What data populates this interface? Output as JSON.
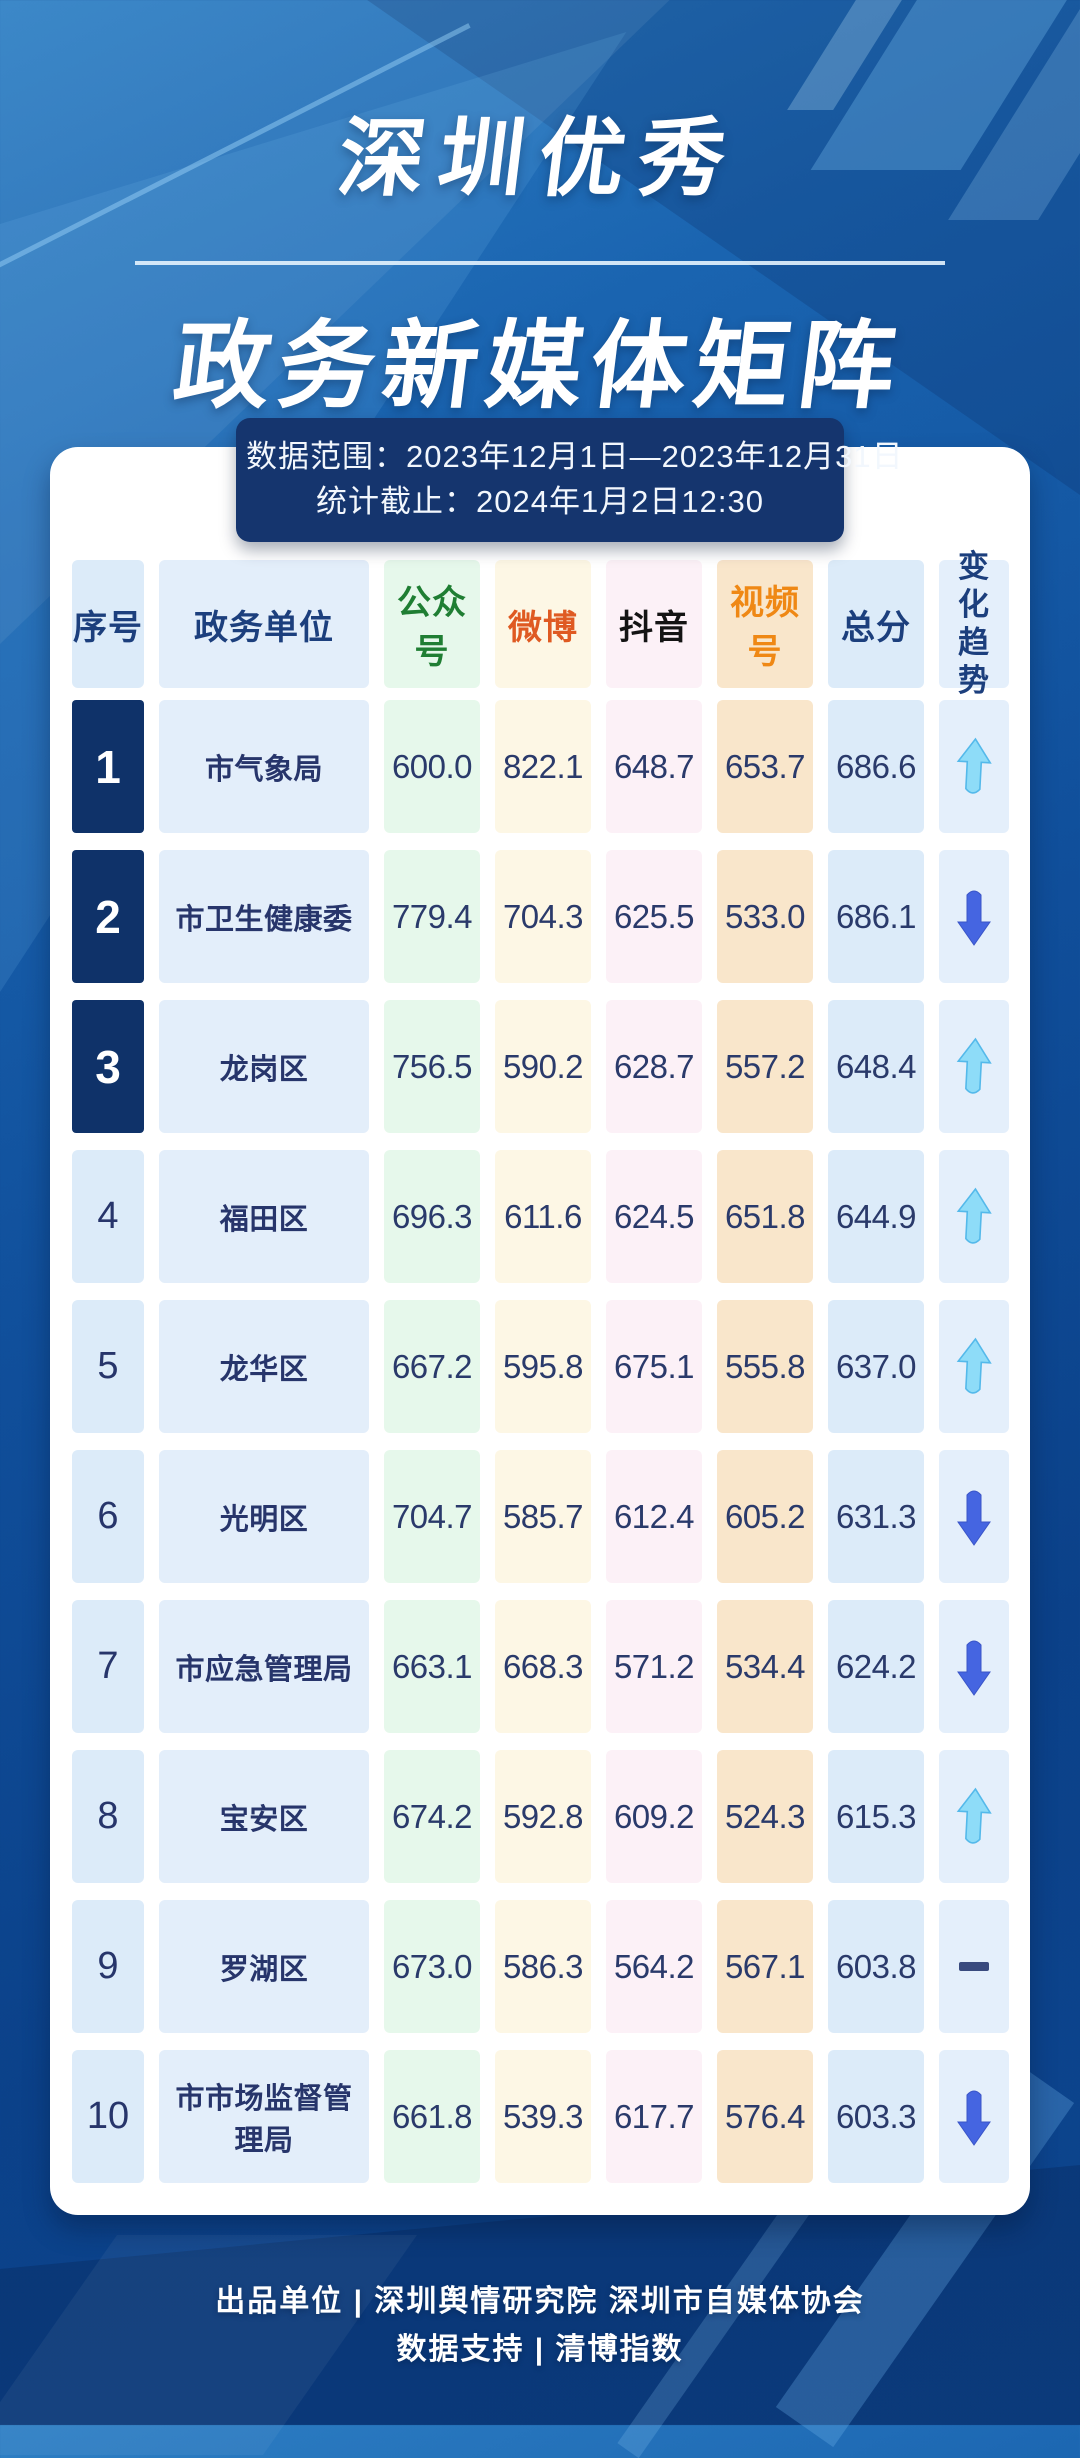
{
  "title": {
    "line1": "深圳优秀",
    "line2": "政务新媒体矩阵"
  },
  "meta": {
    "line1": "数据范围：2023年12月1日—2023年12月31日",
    "line2": "统计截止：2024年1月2日12:30"
  },
  "table": {
    "columns": [
      {
        "key": "rank",
        "label": "序号",
        "header_color": "#1c3f7d",
        "bg": "#dcebf9"
      },
      {
        "key": "unit",
        "label": "政务单位",
        "header_color": "#1c3f7d",
        "bg": "#e3eefa"
      },
      {
        "key": "wechat",
        "label": "公众号",
        "header_color": "#1f7e33",
        "bg": "#e6f8eb"
      },
      {
        "key": "weibo",
        "label": "微博",
        "header_color": "#df5a22",
        "bg": "#fdf7e5"
      },
      {
        "key": "douyin",
        "label": "抖音",
        "header_color": "#141414",
        "bg": "#fcf1f7"
      },
      {
        "key": "video",
        "label": "视频号",
        "header_color": "#ef8815",
        "bg": "#f9e6cb"
      },
      {
        "key": "total",
        "label": "总分",
        "header_color": "#1c3f7d",
        "bg": "#dcebf9"
      },
      {
        "key": "trend",
        "label": "变化趋势",
        "header_color": "#1c3f7d",
        "bg": "#e4effb"
      }
    ],
    "rows": [
      {
        "rank": "1",
        "unit": "市气象局",
        "wechat": "600.0",
        "weibo": "822.1",
        "douyin": "648.7",
        "video": "653.7",
        "total": "686.6",
        "trend": "up"
      },
      {
        "rank": "2",
        "unit": "市卫生健康委",
        "wechat": "779.4",
        "weibo": "704.3",
        "douyin": "625.5",
        "video": "533.0",
        "total": "686.1",
        "trend": "down"
      },
      {
        "rank": "3",
        "unit": "龙岗区",
        "wechat": "756.5",
        "weibo": "590.2",
        "douyin": "628.7",
        "video": "557.2",
        "total": "648.4",
        "trend": "up"
      },
      {
        "rank": "4",
        "unit": "福田区",
        "wechat": "696.3",
        "weibo": "611.6",
        "douyin": "624.5",
        "video": "651.8",
        "total": "644.9",
        "trend": "up"
      },
      {
        "rank": "5",
        "unit": "龙华区",
        "wechat": "667.2",
        "weibo": "595.8",
        "douyin": "675.1",
        "video": "555.8",
        "total": "637.0",
        "trend": "up"
      },
      {
        "rank": "6",
        "unit": "光明区",
        "wechat": "704.7",
        "weibo": "585.7",
        "douyin": "612.4",
        "video": "605.2",
        "total": "631.3",
        "trend": "down"
      },
      {
        "rank": "7",
        "unit": "市应急管理局",
        "wechat": "663.1",
        "weibo": "668.3",
        "douyin": "571.2",
        "video": "534.4",
        "total": "624.2",
        "trend": "down"
      },
      {
        "rank": "8",
        "unit": "宝安区",
        "wechat": "674.2",
        "weibo": "592.8",
        "douyin": "609.2",
        "video": "524.3",
        "total": "615.3",
        "trend": "up"
      },
      {
        "rank": "9",
        "unit": "罗湖区",
        "wechat": "673.0",
        "weibo": "586.3",
        "douyin": "564.2",
        "video": "567.1",
        "total": "603.8",
        "trend": "flat"
      },
      {
        "rank": "10",
        "unit": "市市场监督管理局",
        "wechat": "661.8",
        "weibo": "539.3",
        "douyin": "617.7",
        "video": "576.4",
        "total": "603.3",
        "trend": "down"
      }
    ],
    "top3_rank_bg": "#0f3269",
    "trend_colors": {
      "up": "#8edcf8",
      "up_stroke": "#54b9ea",
      "down": "#4565e1",
      "down_stroke": "#3a55c8",
      "flat": "#394a7e"
    }
  },
  "footer": {
    "line1": "出品单位 | 深圳舆情研究院 深圳市自媒体协会",
    "line2": "数据支持 | 清博指数"
  },
  "chart_data": {
    "type": "table",
    "title": "深圳优秀政务新媒体矩阵",
    "date_range": "2023年12月1日—2023年12月31日",
    "stat_deadline": "2024年1月2日12:30",
    "columns": [
      "序号",
      "政务单位",
      "公众号",
      "微博",
      "抖音",
      "视频号",
      "总分",
      "变化趋势"
    ],
    "rows": [
      [
        1,
        "市气象局",
        600.0,
        822.1,
        648.7,
        653.7,
        686.6,
        "up"
      ],
      [
        2,
        "市卫生健康委",
        779.4,
        704.3,
        625.5,
        533.0,
        686.1,
        "down"
      ],
      [
        3,
        "龙岗区",
        756.5,
        590.2,
        628.7,
        557.2,
        648.4,
        "up"
      ],
      [
        4,
        "福田区",
        696.3,
        611.6,
        624.5,
        651.8,
        644.9,
        "up"
      ],
      [
        5,
        "龙华区",
        667.2,
        595.8,
        675.1,
        555.8,
        637.0,
        "up"
      ],
      [
        6,
        "光明区",
        704.7,
        585.7,
        612.4,
        605.2,
        631.3,
        "down"
      ],
      [
        7,
        "市应急管理局",
        663.1,
        668.3,
        571.2,
        534.4,
        624.2,
        "down"
      ],
      [
        8,
        "宝安区",
        674.2,
        592.8,
        609.2,
        524.3,
        615.3,
        "up"
      ],
      [
        9,
        "罗湖区",
        673.0,
        586.3,
        564.2,
        567.1,
        603.8,
        "flat"
      ],
      [
        10,
        "市市场监督管理局",
        661.8,
        539.3,
        617.7,
        576.4,
        603.3,
        "down"
      ]
    ]
  }
}
